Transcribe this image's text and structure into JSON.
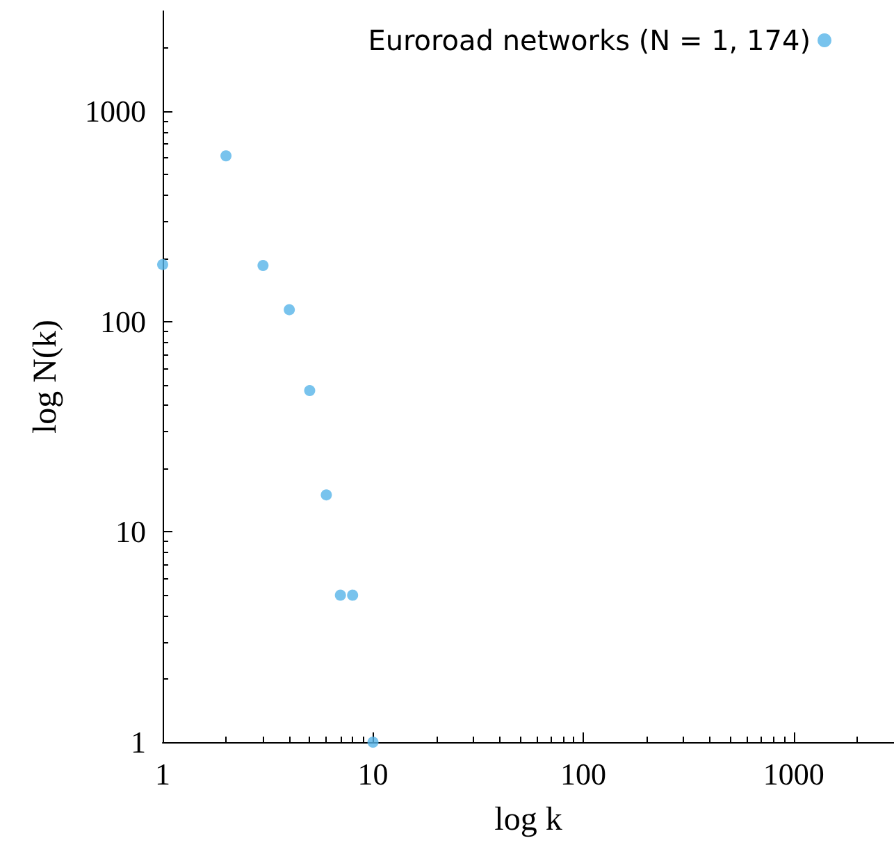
{
  "chart_data": {
    "type": "scatter",
    "xlabel": "log k",
    "ylabel": "log N(k)",
    "log": "xy",
    "x": [
      1,
      2,
      3,
      4,
      5,
      6,
      7,
      8,
      10
    ],
    "series": [
      {
        "name": "Euroroad networks (N = 1, 174)",
        "color": "#56b4e9",
        "values": [
          187,
          615,
          185,
          114,
          47,
          15,
          5,
          5,
          1
        ]
      }
    ],
    "xlim": [
      1,
      3000
    ],
    "ylim": [
      1,
      3000
    ],
    "xticks": [
      1,
      10,
      100,
      1000
    ],
    "yticks": [
      1,
      10,
      100,
      1000
    ],
    "grid": false,
    "legend": "top right",
    "marker": "circle"
  }
}
